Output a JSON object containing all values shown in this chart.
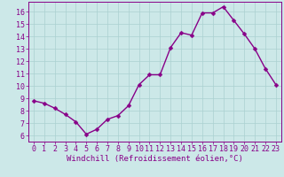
{
  "x": [
    0,
    1,
    2,
    3,
    4,
    5,
    6,
    7,
    8,
    9,
    10,
    11,
    12,
    13,
    14,
    15,
    16,
    17,
    18,
    19,
    20,
    21,
    22,
    23
  ],
  "y": [
    8.8,
    8.6,
    8.2,
    7.7,
    7.1,
    6.1,
    6.5,
    7.3,
    7.6,
    8.4,
    10.1,
    10.9,
    10.9,
    13.1,
    14.3,
    14.1,
    15.9,
    15.9,
    16.4,
    15.3,
    14.2,
    13.0,
    11.4,
    10.1
  ],
  "line_color": "#880088",
  "marker": "D",
  "marker_size": 2.5,
  "linewidth": 1.0,
  "xlabel": "Windchill (Refroidissement éolien,°C)",
  "xlabel_fontsize": 6.5,
  "xlim": [
    -0.5,
    23.5
  ],
  "ylim": [
    5.5,
    16.8
  ],
  "yticks": [
    6,
    7,
    8,
    9,
    10,
    11,
    12,
    13,
    14,
    15,
    16
  ],
  "xticks": [
    0,
    1,
    2,
    3,
    4,
    5,
    6,
    7,
    8,
    9,
    10,
    11,
    12,
    13,
    14,
    15,
    16,
    17,
    18,
    19,
    20,
    21,
    22,
    23
  ],
  "background_color": "#cce8e8",
  "grid_color": "#aad0d0",
  "tick_fontsize": 6.0
}
